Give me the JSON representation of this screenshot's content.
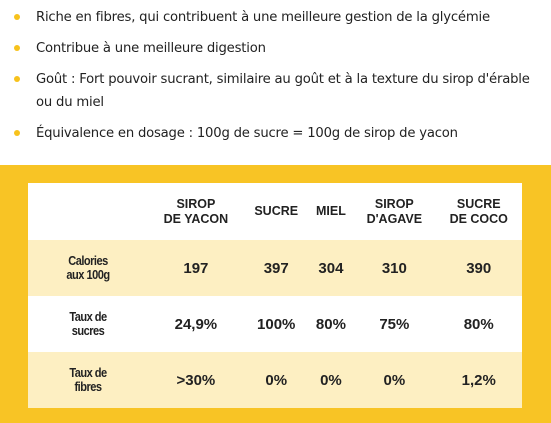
{
  "bullets": [
    "Riche en fibres, qui contribuent à une meilleure gestion de la glycémie",
    "Contribue à une meilleure digestion",
    "Goût : Fort pouvoir sucrant, similaire au goût et à la texture du sirop d'érable ou du miel",
    "Équivalence en dosage : 100g de sucre = 100g de sirop de yacon"
  ],
  "table": {
    "columns": [
      [
        "SIROP",
        "DE YACON"
      ],
      [
        "SUCRE"
      ],
      [
        "MIEL"
      ],
      [
        "SIROP",
        "D'AGAVE"
      ],
      [
        "SUCRE",
        "DE COCO"
      ]
    ],
    "rows": [
      {
        "label": [
          "Calories",
          "aux 100g"
        ],
        "cells": [
          "197",
          "397",
          "304",
          "310",
          "390"
        ]
      },
      {
        "label": [
          "Taux de",
          "sucres"
        ],
        "cells": [
          "24,9%",
          "100%",
          "80%",
          "75%",
          "80%"
        ]
      },
      {
        "label": [
          "Taux de",
          "fibres"
        ],
        "cells": [
          ">30%",
          "0%",
          "0%",
          "0%",
          "1,2%"
        ]
      }
    ]
  }
}
